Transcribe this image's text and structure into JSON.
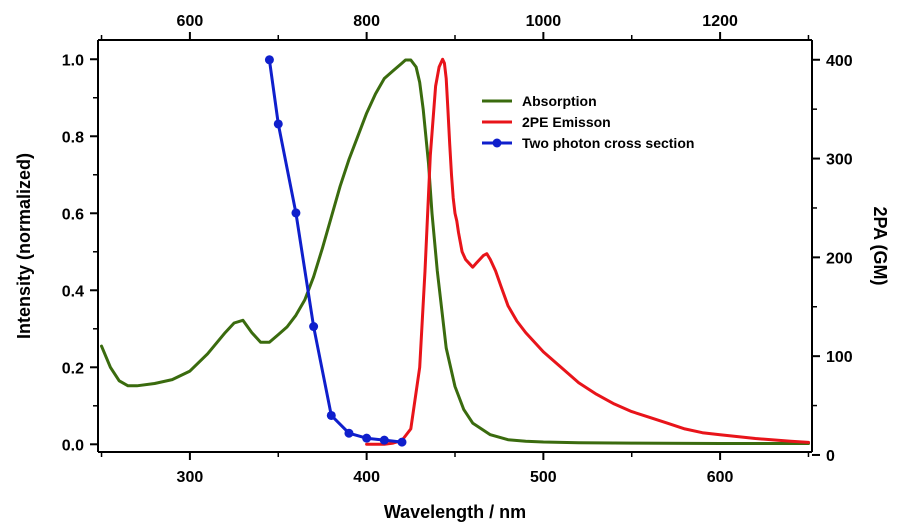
{
  "chart_data": {
    "type": "line",
    "xlabel": "Wavelength / nm",
    "ylabel": "Intensity (normalized)",
    "y2label": "2PA (GM)",
    "xlim": [
      248,
      652
    ],
    "ylim": [
      -0.02,
      1.05
    ],
    "x2lim": [
      496,
      1304
    ],
    "y2lim": [
      3,
      420
    ],
    "x_ticks": [
      "300",
      "400",
      "500",
      "600"
    ],
    "x2_ticks": [
      "600",
      "800",
      "1000",
      "1200"
    ],
    "y_ticks": [
      "0.0",
      "0.2",
      "0.4",
      "0.6",
      "0.8",
      "1.0"
    ],
    "y2_ticks": [
      "0",
      "100",
      "200",
      "300",
      "400"
    ],
    "legend_position": "top-center",
    "series": [
      {
        "name": "Absorption",
        "color": "#3a6b0e",
        "axis": "left-bottom",
        "x": [
          250,
          255,
          260,
          265,
          270,
          280,
          290,
          300,
          310,
          320,
          325,
          330,
          335,
          340,
          345,
          350,
          355,
          360,
          365,
          370,
          375,
          380,
          385,
          390,
          395,
          400,
          405,
          410,
          415,
          420,
          422,
          425,
          428,
          430,
          432,
          435,
          437,
          440,
          445,
          450,
          455,
          460,
          470,
          480,
          490,
          500,
          520,
          550,
          600,
          650
        ],
        "y": [
          0.255,
          0.2,
          0.165,
          0.152,
          0.152,
          0.158,
          0.168,
          0.19,
          0.235,
          0.29,
          0.315,
          0.322,
          0.29,
          0.265,
          0.265,
          0.285,
          0.305,
          0.335,
          0.375,
          0.435,
          0.51,
          0.59,
          0.67,
          0.74,
          0.8,
          0.86,
          0.91,
          0.95,
          0.97,
          0.99,
          0.998,
          0.998,
          0.98,
          0.94,
          0.87,
          0.73,
          0.6,
          0.45,
          0.25,
          0.15,
          0.09,
          0.055,
          0.025,
          0.012,
          0.008,
          0.006,
          0.004,
          0.003,
          0.002,
          0.002
        ]
      },
      {
        "name": "2PE Emisson",
        "color": "#e8141a",
        "axis": "left-bottom",
        "x": [
          400,
          410,
          415,
          420,
          425,
          430,
          433,
          436,
          439,
          441,
          443,
          444,
          445,
          446,
          447,
          448,
          449,
          450,
          451,
          452,
          454,
          456,
          458,
          460,
          462,
          464,
          466,
          468,
          470,
          473,
          476,
          480,
          485,
          490,
          500,
          510,
          520,
          530,
          540,
          550,
          560,
          570,
          580,
          590,
          600,
          620,
          640,
          650
        ],
        "y": [
          0.0,
          0.0,
          0.003,
          0.01,
          0.04,
          0.2,
          0.45,
          0.75,
          0.93,
          0.98,
          1.0,
          0.99,
          0.95,
          0.87,
          0.78,
          0.7,
          0.64,
          0.6,
          0.58,
          0.55,
          0.5,
          0.48,
          0.47,
          0.46,
          0.47,
          0.48,
          0.49,
          0.495,
          0.48,
          0.45,
          0.41,
          0.36,
          0.32,
          0.29,
          0.24,
          0.2,
          0.16,
          0.13,
          0.105,
          0.085,
          0.07,
          0.055,
          0.04,
          0.03,
          0.025,
          0.015,
          0.008,
          0.005
        ]
      },
      {
        "name": "Two photon cross section",
        "color": "#0f1fcc",
        "axis": "right-top",
        "x": [
          690,
          700,
          720,
          740,
          760,
          780,
          800,
          820,
          840
        ],
        "y": [
          400,
          335,
          245,
          130,
          40,
          22,
          17,
          15,
          13
        ]
      }
    ]
  }
}
